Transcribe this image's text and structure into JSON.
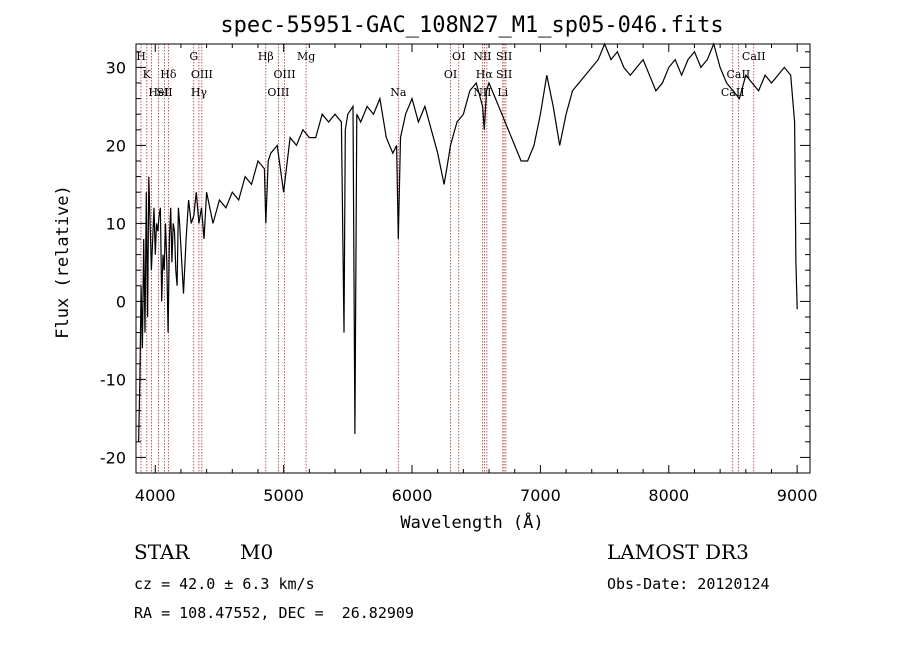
{
  "chart_data": {
    "type": "line",
    "title": "spec-55951-GAC_108N27_M1_sp05-046.fits",
    "xlabel": "Wavelength (Å)",
    "ylabel": "Flux (relative)",
    "xlim": [
      3850,
      9100
    ],
    "ylim": [
      -22,
      33
    ],
    "xticks": [
      4000,
      5000,
      6000,
      7000,
      8000,
      9000
    ],
    "yticks": [
      -20,
      -10,
      0,
      10,
      20,
      30
    ],
    "series": [
      {
        "name": "spectrum",
        "x": [
          3870,
          3880,
          3890,
          3900,
          3910,
          3920,
          3930,
          3940,
          3950,
          3960,
          3970,
          3980,
          3990,
          4000,
          4010,
          4020,
          4030,
          4040,
          4050,
          4060,
          4070,
          4080,
          4090,
          4100,
          4110,
          4120,
          4130,
          4140,
          4150,
          4160,
          4170,
          4180,
          4190,
          4200,
          4220,
          4240,
          4260,
          4280,
          4300,
          4320,
          4340,
          4360,
          4380,
          4400,
          4450,
          4500,
          4550,
          4600,
          4650,
          4700,
          4750,
          4800,
          4850,
          4861,
          4880,
          4900,
          4950,
          5000,
          5050,
          5100,
          5150,
          5200,
          5250,
          5300,
          5350,
          5400,
          5450,
          5470,
          5480,
          5500,
          5540,
          5555,
          5570,
          5600,
          5650,
          5700,
          5750,
          5800,
          5850,
          5880,
          5893,
          5910,
          5950,
          6000,
          6050,
          6100,
          6150,
          6200,
          6250,
          6280,
          6300,
          6350,
          6400,
          6450,
          6500,
          6550,
          6563,
          6580,
          6600,
          6650,
          6700,
          6750,
          6800,
          6850,
          6900,
          6950,
          7000,
          7050,
          7100,
          7150,
          7200,
          7250,
          7300,
          7350,
          7400,
          7450,
          7500,
          7550,
          7600,
          7650,
          7700,
          7750,
          7800,
          7850,
          7900,
          7950,
          8000,
          8050,
          8100,
          8150,
          8200,
          8250,
          8300,
          8350,
          8400,
          8450,
          8500,
          8550,
          8600,
          8650,
          8700,
          8750,
          8800,
          8850,
          8900,
          8950,
          8980,
          8990,
          9000
        ],
        "y": [
          -18,
          -10,
          2,
          -6,
          8,
          -4,
          14,
          -2,
          16,
          10,
          4,
          8,
          12,
          6,
          10,
          9,
          11,
          12,
          0,
          6,
          4,
          10,
          5,
          -4,
          8,
          12,
          5,
          10,
          9,
          4,
          2,
          12,
          10,
          7,
          1,
          8,
          13,
          10,
          11,
          14,
          10,
          12,
          8,
          14,
          10,
          13,
          12,
          14,
          13,
          16,
          15,
          18,
          17,
          10,
          18,
          19,
          20,
          14,
          21,
          20,
          22,
          21,
          21,
          24,
          23,
          24,
          23,
          -4,
          22,
          24,
          25,
          -17,
          24,
          23,
          25,
          24,
          26,
          21,
          19,
          20,
          8,
          21,
          24,
          26,
          23,
          25,
          22,
          19,
          15,
          18,
          20,
          23,
          24,
          27,
          28,
          25,
          22,
          27,
          28,
          26,
          24,
          22,
          20,
          18,
          18,
          20,
          24,
          29,
          25,
          20,
          24,
          27,
          28,
          29,
          30,
          31,
          33,
          31,
          32,
          30,
          29,
          30,
          31,
          29,
          27,
          28,
          30,
          31,
          29,
          31,
          32,
          30,
          31,
          33,
          30,
          28,
          27,
          26,
          29,
          28,
          27,
          29,
          28,
          29,
          30,
          29,
          23,
          5,
          -1
        ]
      }
    ],
    "line_markers": [
      {
        "x": 3889,
        "labels": [
          "H"
        ]
      },
      {
        "x": 3934,
        "labels": [
          "",
          "K"
        ]
      },
      {
        "x": 3970,
        "labels": []
      },
      {
        "x": 4026,
        "labels": [
          "",
          "",
          "HeI"
        ]
      },
      {
        "x": 4072,
        "labels": [
          "",
          "",
          "SII"
        ]
      },
      {
        "x": 4102,
        "labels": [
          "",
          "Hδ"
        ]
      },
      {
        "x": 4300,
        "labels": [
          "G"
        ]
      },
      {
        "x": 4340,
        "labels": [
          "",
          "",
          "Hγ"
        ]
      },
      {
        "x": 4363,
        "labels": [
          "",
          "OIII"
        ]
      },
      {
        "x": 4861,
        "labels": [
          "Hβ"
        ]
      },
      {
        "x": 4959,
        "labels": [
          "",
          "",
          "OIII"
        ]
      },
      {
        "x": 5007,
        "labels": [
          "",
          "OIII"
        ]
      },
      {
        "x": 5175,
        "labels": [
          "Mg"
        ]
      },
      {
        "x": 5893,
        "labels": [
          "",
          "",
          "Na"
        ]
      },
      {
        "x": 6300,
        "labels": [
          "",
          "OI"
        ]
      },
      {
        "x": 6364,
        "labels": [
          "OI"
        ]
      },
      {
        "x": 6548,
        "labels": [
          "NII",
          "",
          "NII"
        ]
      },
      {
        "x": 6563,
        "labels": [
          "",
          "Hα"
        ]
      },
      {
        "x": 6583,
        "labels": []
      },
      {
        "x": 6707,
        "labels": [
          "",
          "",
          "Li"
        ]
      },
      {
        "x": 6717,
        "labels": [
          "SII",
          "SII"
        ]
      },
      {
        "x": 6731,
        "labels": []
      },
      {
        "x": 8498,
        "labels": [
          "",
          "",
          "CaII"
        ]
      },
      {
        "x": 8542,
        "labels": [
          "",
          "CaII"
        ]
      },
      {
        "x": 8662,
        "labels": [
          "CaII"
        ]
      }
    ]
  },
  "info": {
    "class": "STAR",
    "subclass": "M0",
    "survey": "LAMOST DR3",
    "cz": "cz = 42.0 ± 6.3 km/s",
    "obs_date": "Obs-Date: 20120124",
    "radec": "RA = 108.47552, DEC =  26.82909"
  }
}
